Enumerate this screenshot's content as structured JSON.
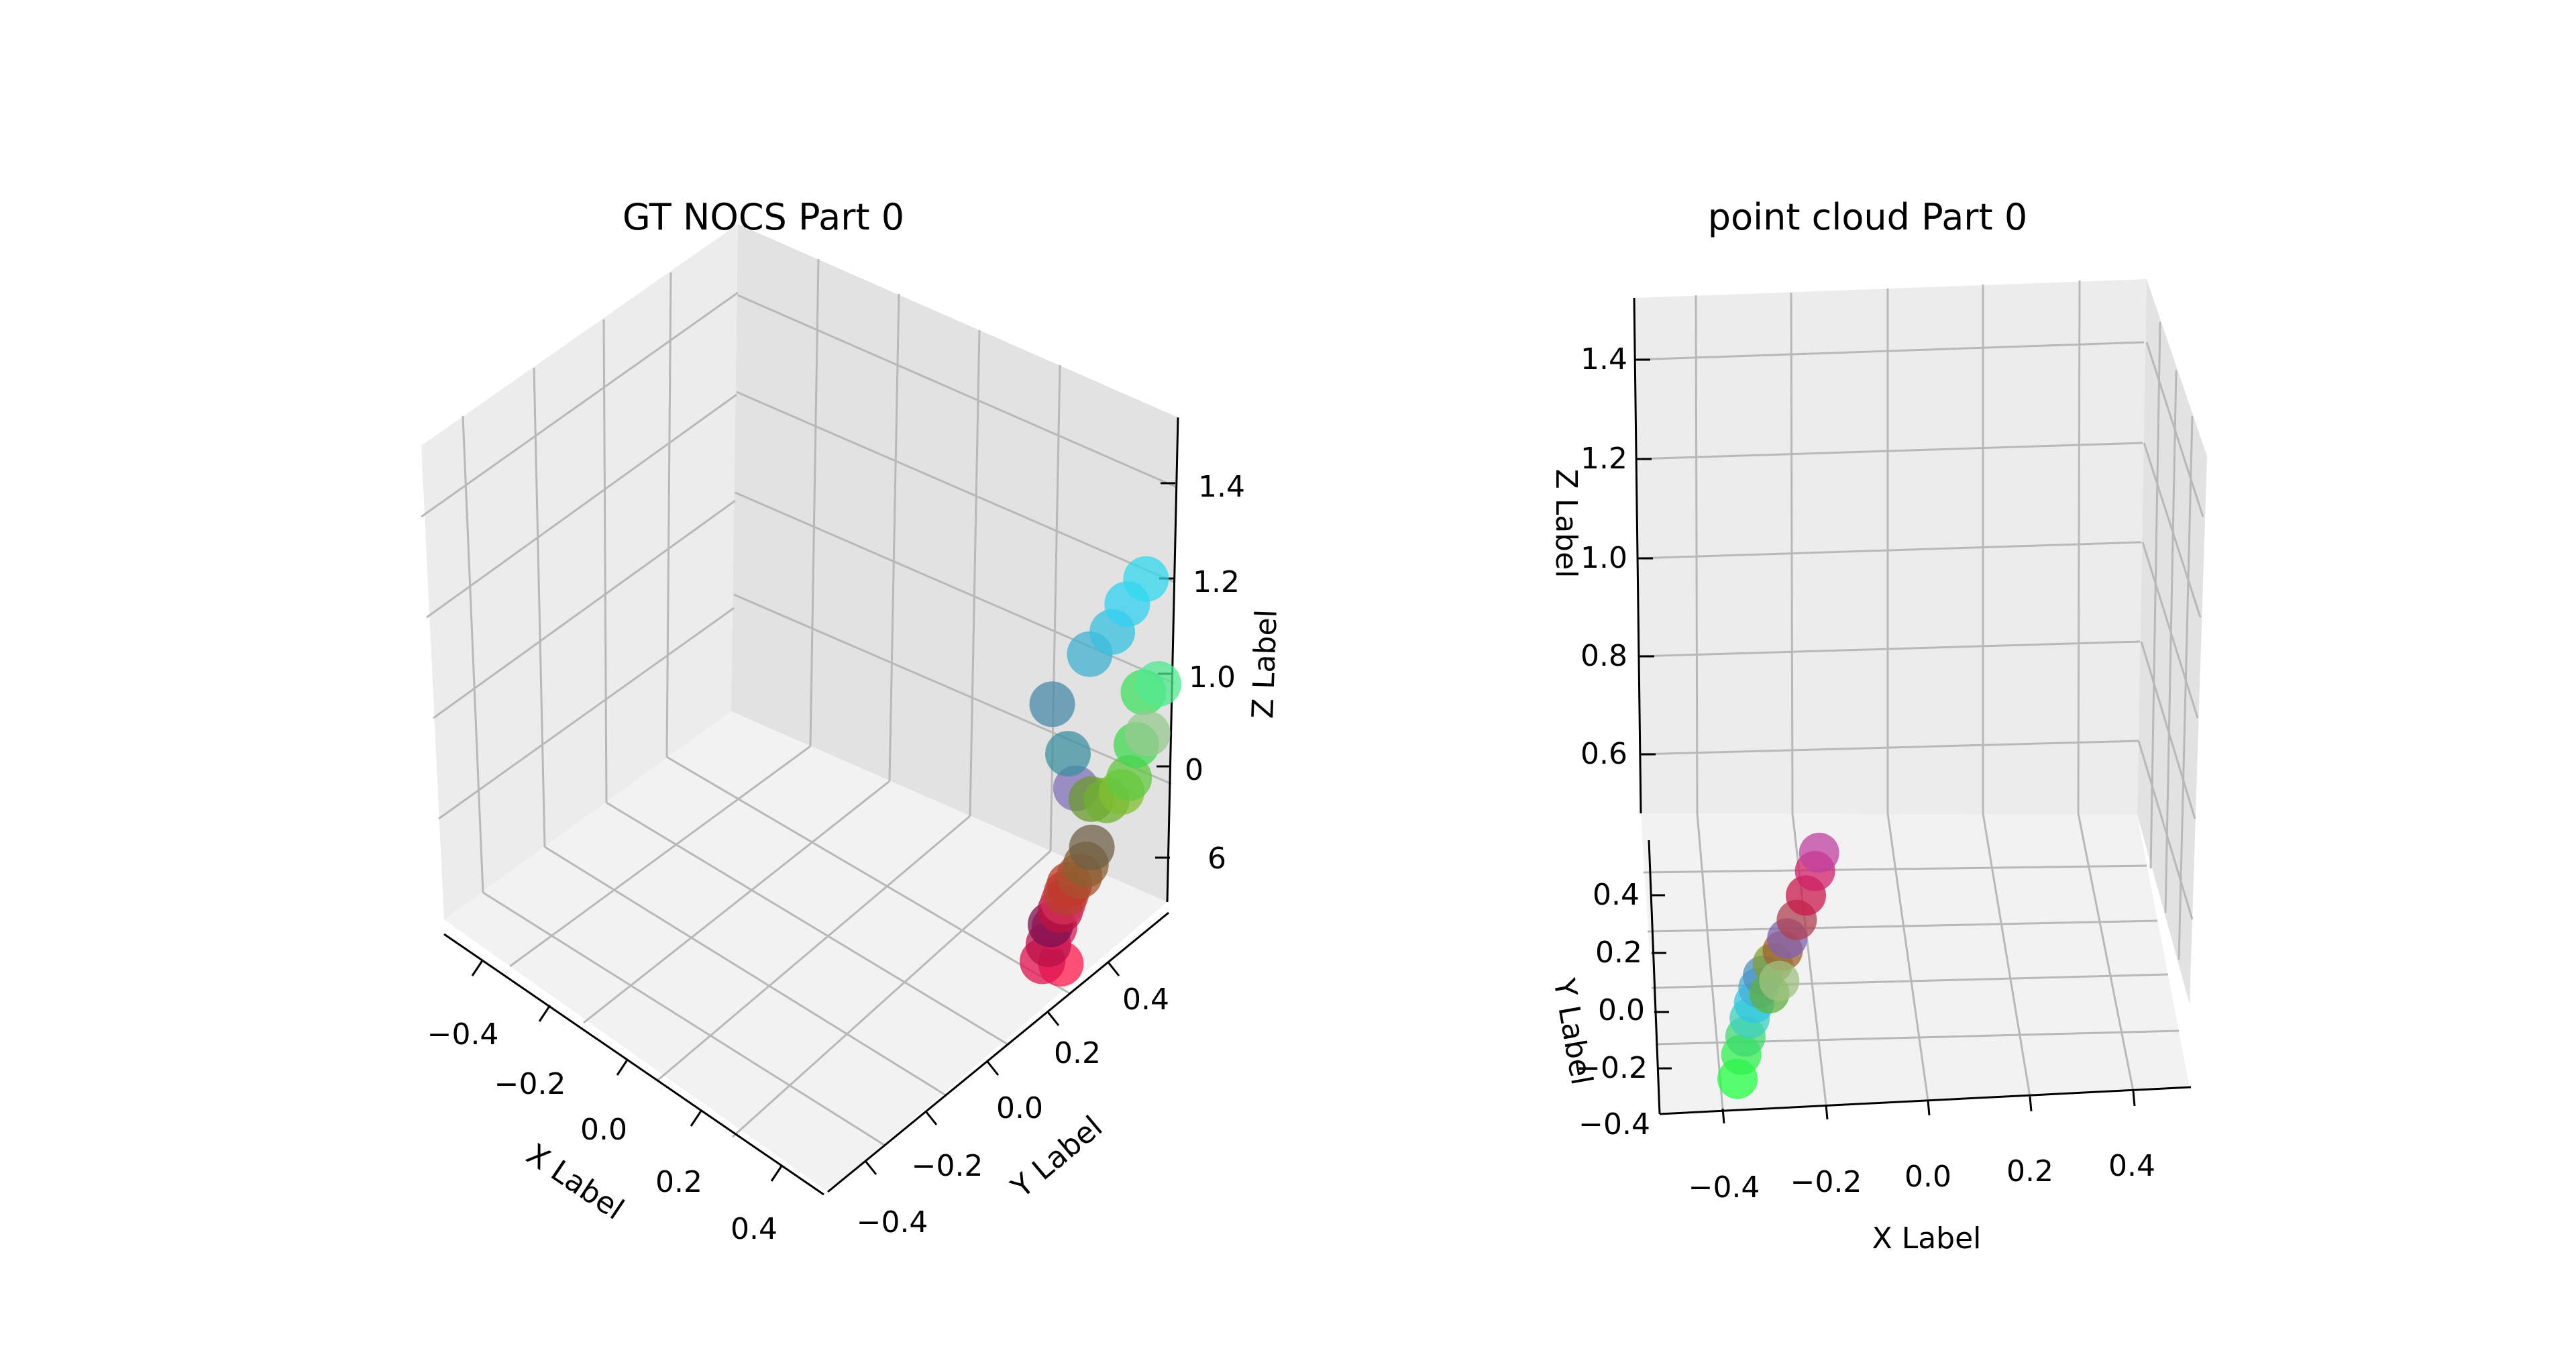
{
  "chart_data": [
    {
      "type": "scatter",
      "title": "GT NOCS Part 0",
      "xlabel": "X Label",
      "ylabel": "Y Label",
      "zlabel": "Z Label",
      "x_ticks": [
        "−0.4",
        "−0.2",
        "0.0",
        "0.2",
        "0.4"
      ],
      "y_ticks": [
        "−0.4",
        "−0.2",
        "0.0",
        "0.2",
        "0.4"
      ],
      "z_ticks": [
        "1.4",
        "1.2",
        "1.0",
        "0",
        "6"
      ],
      "xlim": [
        -0.5,
        0.5
      ],
      "ylim": [
        -0.5,
        0.5
      ],
      "zlim": [
        0.5,
        1.5
      ],
      "grid": true,
      "series": [
        {
          "points": [
            {
              "x": 0.45,
              "y": 0.24,
              "z": 0.5,
              "color": "#ff1a4d"
            },
            {
              "x": 0.42,
              "y": 0.22,
              "z": 0.5,
              "color": "#e0104f"
            },
            {
              "x": 0.4,
              "y": 0.26,
              "z": 0.5,
              "color": "#b8104a"
            },
            {
              "x": 0.38,
              "y": 0.3,
              "z": 0.5,
              "color": "#d81a5a"
            },
            {
              "x": 0.37,
              "y": 0.3,
              "z": 0.5,
              "color": "#7a1050"
            },
            {
              "x": 0.36,
              "y": 0.34,
              "z": 0.5,
              "color": "#c01040"
            },
            {
              "x": 0.35,
              "y": 0.36,
              "z": 0.5,
              "color": "#d4305a"
            },
            {
              "x": 0.34,
              "y": 0.38,
              "z": 0.5,
              "color": "#b84030"
            },
            {
              "x": 0.33,
              "y": 0.4,
              "z": 0.5,
              "color": "#c03828"
            },
            {
              "x": 0.33,
              "y": 0.43,
              "z": 0.5,
              "color": "#a85030"
            },
            {
              "x": 0.32,
              "y": 0.46,
              "z": 0.5,
              "color": "#8a6030"
            },
            {
              "x": 0.3,
              "y": 0.5,
              "z": 0.5,
              "color": "#706048"
            },
            {
              "x": 0.26,
              "y": 0.5,
              "z": 0.55,
              "color": "#8070b8"
            },
            {
              "x": 0.2,
              "y": 0.5,
              "z": 0.62,
              "color": "#4a8aa8"
            },
            {
              "x": 0.24,
              "y": 0.5,
              "z": 0.58,
              "color": "#3c90a0"
            },
            {
              "x": 0.3,
              "y": 0.5,
              "z": 0.55,
              "color": "#6a9a30"
            },
            {
              "x": 0.34,
              "y": 0.5,
              "z": 0.56,
              "color": "#70b030"
            },
            {
              "x": 0.38,
              "y": 0.5,
              "z": 0.58,
              "color": "#80c030"
            },
            {
              "x": 0.4,
              "y": 0.5,
              "z": 0.6,
              "color": "#60c840"
            },
            {
              "x": 0.42,
              "y": 0.5,
              "z": 0.64,
              "color": "#40d850"
            },
            {
              "x": 0.44,
              "y": 0.5,
              "z": 0.7,
              "color": "#40e060"
            },
            {
              "x": 0.45,
              "y": 0.5,
              "z": 0.66,
              "color": "#98c890"
            },
            {
              "x": 0.3,
              "y": 0.5,
              "z": 0.7,
              "color": "#40b0d0"
            },
            {
              "x": 0.36,
              "y": 0.5,
              "z": 0.74,
              "color": "#38c0e0"
            },
            {
              "x": 0.4,
              "y": 0.5,
              "z": 0.78,
              "color": "#30d0f0"
            },
            {
              "x": 0.45,
              "y": 0.5,
              "z": 0.82,
              "color": "#30d8f0"
            },
            {
              "x": 0.48,
              "y": 0.5,
              "z": 0.72,
              "color": "#50e890"
            }
          ]
        }
      ]
    },
    {
      "type": "scatter",
      "title": "point cloud Part 0",
      "xlabel": "X Label",
      "ylabel": "Y Label",
      "zlabel": "Z Label",
      "x_ticks": [
        "−0.4",
        "−0.2",
        "0.0",
        "0.2",
        "0.4"
      ],
      "y_ticks": [
        "0.4",
        "0.2",
        "0.0",
        "−0.2",
        "−0.4"
      ],
      "z_ticks": [
        "1.4",
        "1.2",
        "1.0",
        "0.8",
        "0.6"
      ],
      "xlim": [
        -0.5,
        0.5
      ],
      "ylim": [
        -0.5,
        0.5
      ],
      "zlim": [
        0.5,
        1.5
      ],
      "grid": true,
      "series": [
        {
          "points": [
            {
              "x": -0.35,
              "y": -0.4,
              "z": 0.5,
              "color": "#20ff40"
            },
            {
              "x": -0.34,
              "y": -0.32,
              "z": 0.5,
              "color": "#30f050"
            },
            {
              "x": -0.33,
              "y": -0.26,
              "z": 0.5,
              "color": "#40d870"
            },
            {
              "x": -0.32,
              "y": -0.2,
              "z": 0.5,
              "color": "#40d0c0"
            },
            {
              "x": -0.31,
              "y": -0.15,
              "z": 0.5,
              "color": "#30c8e0"
            },
            {
              "x": -0.3,
              "y": -0.1,
              "z": 0.5,
              "color": "#40b0d8"
            },
            {
              "x": -0.29,
              "y": -0.06,
              "z": 0.5,
              "color": "#5090c0"
            },
            {
              "x": -0.27,
              "y": -0.02,
              "z": 0.5,
              "color": "#80a030"
            },
            {
              "x": -0.25,
              "y": 0.02,
              "z": 0.5,
              "color": "#a06030"
            },
            {
              "x": -0.24,
              "y": 0.06,
              "z": 0.5,
              "color": "#8060b0"
            },
            {
              "x": -0.22,
              "y": 0.12,
              "z": 0.5,
              "color": "#b04050"
            },
            {
              "x": -0.2,
              "y": 0.2,
              "z": 0.5,
              "color": "#c81a4a"
            },
            {
              "x": -0.18,
              "y": 0.28,
              "z": 0.5,
              "color": "#d0206a"
            },
            {
              "x": -0.17,
              "y": 0.34,
              "z": 0.5,
              "color": "#c040a0"
            },
            {
              "x": -0.28,
              "y": -0.12,
              "z": 0.5,
              "color": "#60b040"
            },
            {
              "x": -0.26,
              "y": -0.08,
              "z": 0.5,
              "color": "#a0c080"
            }
          ]
        }
      ]
    }
  ]
}
